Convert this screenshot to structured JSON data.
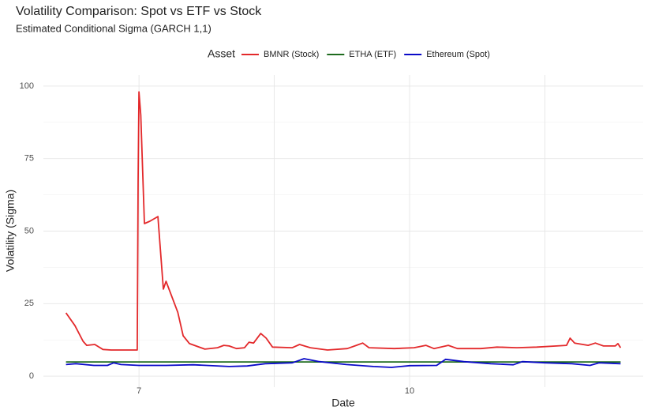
{
  "chart_data": {
    "type": "line",
    "title": "Volatility Comparison: Spot vs ETF vs Stock",
    "subtitle": "Estimated Conditional Sigma (GARCH 1,1)",
    "x_label": "Date",
    "y_label": "Volatility (Sigma)",
    "legend_title": "Asset",
    "legend_position": "top",
    "grid": true,
    "xlim": [
      5.94,
      12.59
    ],
    "xticks": [
      7,
      10
    ],
    "minor_xticks": [
      8.5,
      11.5
    ],
    "ylim": [
      -3.8,
      103.8
    ],
    "yticks": [
      0,
      25,
      50,
      75,
      100
    ],
    "minor_yticks": [
      12.5,
      37.5,
      62.5,
      87.5
    ],
    "series": [
      {
        "name": "BMNR (Stock)",
        "color": "#e3292b",
        "x": [
          6.19,
          6.29,
          6.38,
          6.42,
          6.51,
          6.6,
          6.69,
          6.98,
          6.99,
          7.0,
          7.02,
          7.06,
          7.12,
          7.21,
          7.27,
          7.3,
          7.43,
          7.49,
          7.56,
          7.73,
          7.87,
          7.94,
          8.0,
          8.08,
          8.17,
          8.22,
          8.27,
          8.35,
          8.41,
          8.48,
          8.7,
          8.78,
          8.9,
          9.09,
          9.31,
          9.41,
          9.48,
          9.55,
          9.83,
          10.05,
          10.18,
          10.27,
          10.43,
          10.53,
          10.79,
          10.97,
          11.19,
          11.41,
          11.63,
          11.74,
          11.78,
          11.83,
          11.98,
          12.06,
          12.15,
          12.28,
          12.31,
          12.34
        ],
        "values": [
          21.8,
          17.4,
          12,
          10.6,
          10.9,
          9.2,
          9,
          9,
          67,
          98,
          90,
          52.6,
          53.4,
          55,
          30,
          32.7,
          22,
          13.9,
          11.2,
          9.3,
          9.8,
          10.6,
          10.4,
          9.5,
          9.8,
          11.7,
          11.4,
          14.7,
          13.1,
          10,
          9.8,
          10.9,
          9.8,
          9,
          9.5,
          10.6,
          11.4,
          9.8,
          9.5,
          9.8,
          10.6,
          9.5,
          10.6,
          9.5,
          9.5,
          10,
          9.8,
          10,
          10.4,
          10.6,
          13.1,
          11.4,
          10.6,
          11.4,
          10.4,
          10.4,
          11.2,
          9.8
        ]
      },
      {
        "name": "ETHA (ETF)",
        "color": "#1e6b1e",
        "x": [
          6.19,
          7.0,
          8.5,
          10.0,
          11.5,
          12.34
        ],
        "values": [
          4.9,
          4.9,
          4.9,
          4.9,
          4.9,
          4.9
        ]
      },
      {
        "name": "Ethereum (Spot)",
        "color": "#0a0ac8",
        "x": [
          6.19,
          6.3,
          6.5,
          6.65,
          6.72,
          6.8,
          7.0,
          7.3,
          7.6,
          8.0,
          8.2,
          8.4,
          8.7,
          8.83,
          9.0,
          9.3,
          9.6,
          9.8,
          10.0,
          10.3,
          10.4,
          10.6,
          10.9,
          11.15,
          11.25,
          11.5,
          11.8,
          12.0,
          12.1,
          12.34
        ],
        "values": [
          4.0,
          4.3,
          3.7,
          3.7,
          4.6,
          4.0,
          3.7,
          3.7,
          3.9,
          3.3,
          3.5,
          4.3,
          4.6,
          6.0,
          5.0,
          4.0,
          3.3,
          3.0,
          3.6,
          3.7,
          5.8,
          5.0,
          4.3,
          3.9,
          5.0,
          4.6,
          4.3,
          3.7,
          4.6,
          4.3
        ]
      }
    ]
  }
}
